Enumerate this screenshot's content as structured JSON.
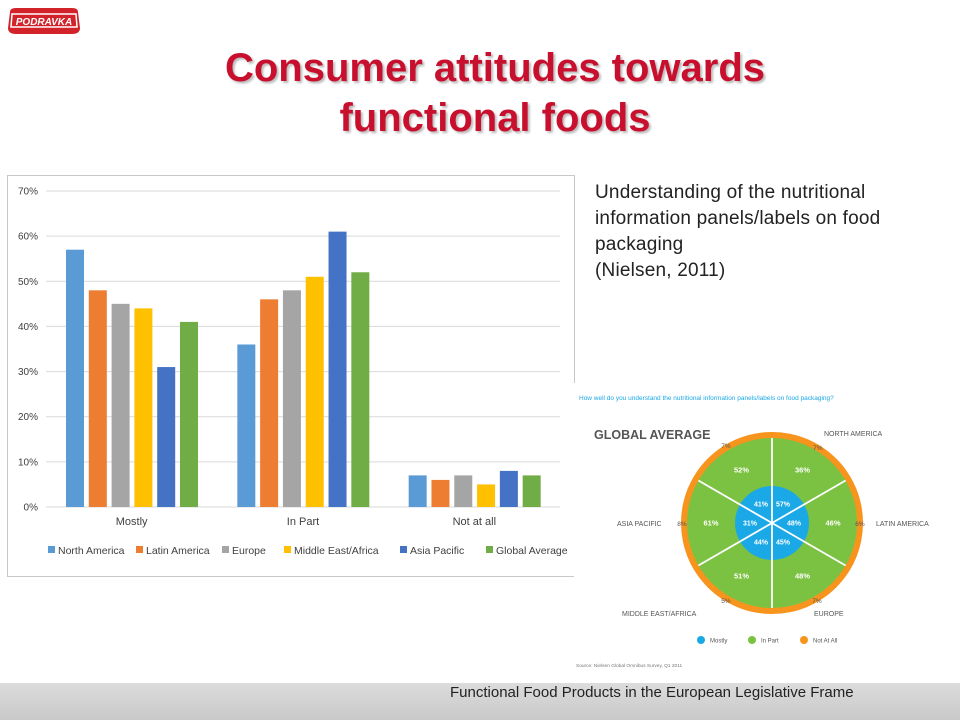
{
  "logo": {
    "text": "PODRAVKA",
    "color": "#d2232a"
  },
  "title_line1": "Consumer attitudes towards",
  "title_line2": "functional foods",
  "description": {
    "line1": "Understanding of the nutritional",
    "line2": "information panels/labels on food",
    "line3": "packaging",
    "line4": "(Nielsen, 2011)"
  },
  "footer": "Functional Food Products in the European Legislative Frame",
  "chart_data": [
    {
      "type": "bar",
      "categories": [
        "Mostly",
        "In Part",
        "Not at all"
      ],
      "series": [
        {
          "name": "North America",
          "color": "#5b9bd5",
          "values": [
            57,
            36,
            7
          ]
        },
        {
          "name": "Latin America",
          "color": "#ed7d31",
          "values": [
            48,
            46,
            6
          ]
        },
        {
          "name": "Europe",
          "color": "#a5a5a5",
          "values": [
            45,
            48,
            7
          ]
        },
        {
          "name": "Middle East/Africa",
          "color": "#ffc000",
          "values": [
            44,
            51,
            5
          ]
        },
        {
          "name": "Asia Pacific",
          "color": "#4472c4",
          "values": [
            31,
            61,
            8
          ]
        },
        {
          "name": "Global Average",
          "color": "#70ad47",
          "values": [
            41,
            52,
            7
          ]
        }
      ],
      "yticks": [
        "0%",
        "10%",
        "20%",
        "30%",
        "40%",
        "50%",
        "60%",
        "70%"
      ],
      "ylim": [
        0,
        70
      ],
      "grid": true,
      "legend": "bottom"
    },
    {
      "type": "pie",
      "question": "How well do you understand the nutritional information panels/labels on food packaging?",
      "title": "GLOBAL AVERAGE",
      "regions": [
        {
          "name": "NORTH AMERICA",
          "mostly": "57%",
          "in_part": "36%",
          "not_at_all": "7%"
        },
        {
          "name": "LATIN AMERICA",
          "mostly": "48%",
          "in_part": "46%",
          "not_at_all": "6%"
        },
        {
          "name": "EUROPE",
          "mostly": "45%",
          "in_part": "48%",
          "not_at_all": "7%"
        },
        {
          "name": "MIDDLE EAST/AFRICA",
          "mostly": "44%",
          "in_part": "51%",
          "not_at_all": "5%"
        },
        {
          "name": "ASIA PACIFIC",
          "mostly": "31%",
          "in_part": "61%",
          "not_at_all": "8%"
        },
        {
          "name": "",
          "mostly": "41%",
          "in_part": "52%",
          "not_at_all": "7%"
        }
      ],
      "legend": [
        {
          "name": "Mostly",
          "color": "#1aa8e6"
        },
        {
          "name": "In Part",
          "color": "#7cc242"
        },
        {
          "name": "Not At All",
          "color": "#f7941d"
        }
      ],
      "source": "Source: Nielsen Global Omnibus Survey, Q1 2011"
    }
  ]
}
